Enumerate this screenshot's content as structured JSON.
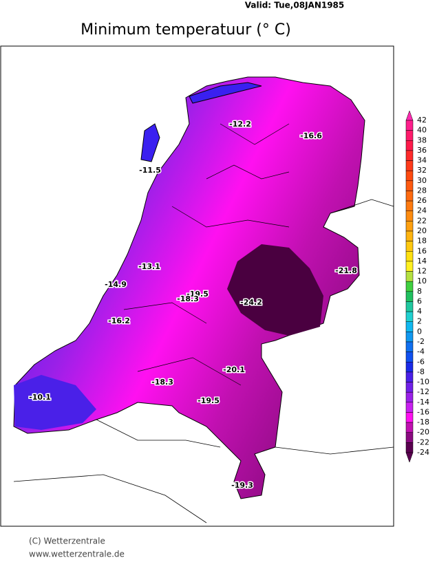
{
  "header": {
    "valid": "Valid:  Tue,08JAN1985",
    "title": "Minimum temperatuur (° C)"
  },
  "stations": [
    {
      "label": "-12.2"
    },
    {
      "label": "-16.6"
    },
    {
      "label": "-11.5"
    },
    {
      "label": "-13.1"
    },
    {
      "label": "-14.9"
    },
    {
      "label": "-19.5"
    },
    {
      "label": "-18.3"
    },
    {
      "label": "-24.2"
    },
    {
      "label": "-21.8"
    },
    {
      "label": "-16.2"
    },
    {
      "label": "-20.1"
    },
    {
      "label": "-18.3"
    },
    {
      "label": "-19.5"
    },
    {
      "label": "-10.1"
    },
    {
      "label": "-19.3"
    }
  ],
  "colorbar": {
    "labels": [
      42,
      40,
      38,
      36,
      34,
      32,
      30,
      28,
      26,
      24,
      22,
      20,
      18,
      16,
      14,
      12,
      10,
      8,
      6,
      4,
      2,
      0,
      -2,
      -4,
      -6,
      -8,
      -10,
      -12,
      -14,
      -16,
      -18,
      -20,
      -22,
      -24
    ],
    "colors": [
      "#ff2ab0",
      "#ff1f8c",
      "#ff1a6a",
      "#ff1a4a",
      "#ff2a2a",
      "#ff3a1a",
      "#ff4a10",
      "#ff5a10",
      "#ff6a10",
      "#ff7a10",
      "#ff8c10",
      "#ffa010",
      "#ffb410",
      "#ffc810",
      "#ffe010",
      "#fff020",
      "#b4e040",
      "#40d040",
      "#20c060",
      "#20c8a0",
      "#20d0d0",
      "#10b8f0",
      "#1098f0",
      "#1070f0",
      "#1050f0",
      "#1a2ae8",
      "#4a20e8",
      "#7020e8",
      "#9a20e8",
      "#c820f0",
      "#ff10f0",
      "#c010b0",
      "#8a0a80",
      "#5a0050"
    ]
  },
  "footer": {
    "copyright": "(C) Wetterzentrale",
    "url": "www.wetterzentrale.de"
  }
}
